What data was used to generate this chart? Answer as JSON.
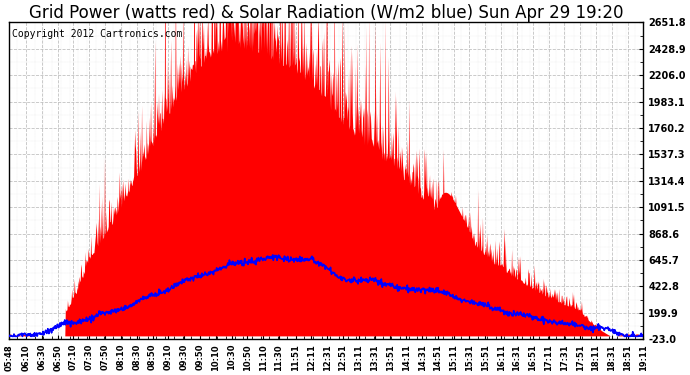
{
  "title": "Grid Power (watts red) & Solar Radiation (W/m2 blue) Sun Apr 29 19:20",
  "copyright": "Copyright 2012 Cartronics.com",
  "y_ticks": [
    -23.0,
    199.9,
    422.8,
    645.7,
    868.6,
    1091.5,
    1314.4,
    1537.3,
    1760.2,
    1983.1,
    2206.0,
    2428.9,
    2651.8
  ],
  "ylim": [
    -23.0,
    2651.8
  ],
  "x_labels": [
    "05:48",
    "06:10",
    "06:30",
    "06:50",
    "07:10",
    "07:30",
    "07:50",
    "08:10",
    "08:30",
    "08:50",
    "09:10",
    "09:30",
    "09:50",
    "10:10",
    "10:30",
    "10:50",
    "11:10",
    "11:30",
    "11:51",
    "12:11",
    "12:31",
    "12:51",
    "13:11",
    "13:31",
    "13:51",
    "14:11",
    "14:31",
    "14:51",
    "15:11",
    "15:31",
    "15:51",
    "16:11",
    "16:31",
    "16:51",
    "17:11",
    "17:31",
    "17:51",
    "18:11",
    "18:31",
    "18:51",
    "19:11"
  ],
  "bg_color": "#ffffff",
  "plot_bg_color": "#ffffff",
  "grid_color": "#bbbbbb",
  "red_color": "#ff0000",
  "blue_color": "#0000ff",
  "title_fontsize": 12,
  "copyright_fontsize": 7
}
